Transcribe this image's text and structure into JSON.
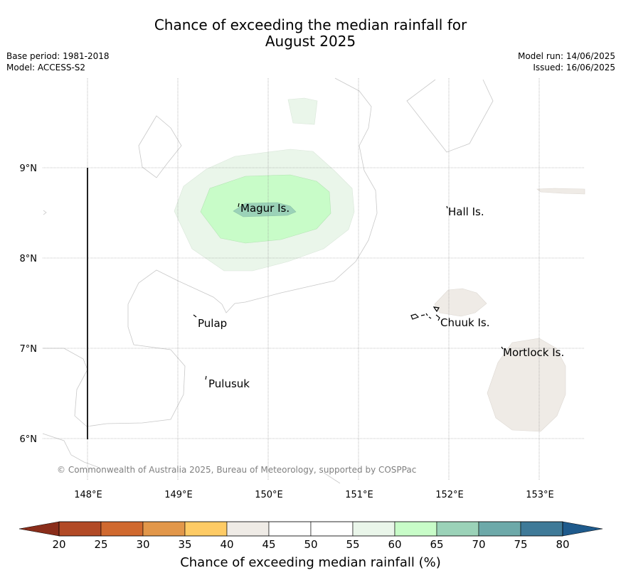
{
  "title_line1": "Chance of exceeding the median rainfall for",
  "title_line2": "August 2025",
  "meta": {
    "base_period": "Base period: 1981-2018",
    "model": "Model: ACCESS-S2",
    "model_run": "Model run: 14/06/2025",
    "issued": "Issued: 16/06/2025"
  },
  "map": {
    "lat_labels": [
      "9°N",
      "8°N",
      "7°N",
      "6°N"
    ],
    "lon_labels": [
      "148°E",
      "149°E",
      "150°E",
      "151°E",
      "152°E",
      "153°E"
    ],
    "places": [
      {
        "name": "Magur Is."
      },
      {
        "name": "Hall Is."
      },
      {
        "name": "Pulap"
      },
      {
        "name": "Chuuk Is."
      },
      {
        "name": "Mortlock Is."
      },
      {
        "name": "Pulusuk"
      }
    ],
    "copyright": "© Commonwealth of Australia 2025, Bureau of Meteorology, supported by COSPPac",
    "colors": {
      "c40_45": "#efebe6",
      "c55_60": "#eaf6ea",
      "c60_65": "#c8fcc8",
      "c65_70": "#9bd2b8"
    }
  },
  "colorbar": {
    "ticks": [
      "20",
      "25",
      "30",
      "35",
      "40",
      "45",
      "50",
      "55",
      "60",
      "65",
      "70",
      "75",
      "80"
    ],
    "colors": [
      "#b24a26",
      "#d0692f",
      "#e2974a",
      "#fecb65",
      "#efebe6",
      "#ffffff",
      "#ffffff",
      "#eaf6ea",
      "#c8fcc8",
      "#9bd2b8",
      "#6da9a9",
      "#3f7a98"
    ],
    "under_color": "#8a2d1a",
    "over_color": "#1e5a8c",
    "label": "Chance of exceeding median rainfall (%)"
  }
}
